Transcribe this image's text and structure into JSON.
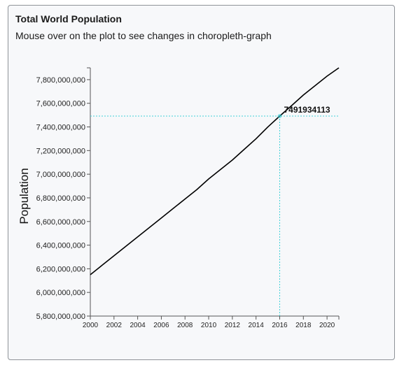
{
  "card": {
    "title": "Total World Population",
    "subtitle": "Mouse over on the plot to see changes in choropleth-graph"
  },
  "chart_data": {
    "type": "line",
    "title": "Total World Population",
    "xlabel": "",
    "ylabel": "Population",
    "x": [
      2000,
      2001,
      2002,
      2003,
      2004,
      2005,
      2006,
      2007,
      2008,
      2009,
      2010,
      2011,
      2012,
      2013,
      2014,
      2015,
      2016,
      2017,
      2018,
      2019,
      2020,
      2021
    ],
    "series": [
      {
        "name": "",
        "values": [
          6150000000,
          6230000000,
          6310000000,
          6390000000,
          6470000000,
          6550000000,
          6630000000,
          6710000000,
          6790000000,
          6870000000,
          6960000000,
          7040000000,
          7120000000,
          7210000000,
          7300000000,
          7400000000,
          7491934113,
          7580000000,
          7670000000,
          7750000000,
          7830000000,
          7900000000
        ]
      }
    ],
    "xlim": [
      2000,
      2021
    ],
    "ylim": [
      5800000000,
      7900000000
    ],
    "y_ticks": [
      5800000000,
      6000000000,
      6200000000,
      6400000000,
      6600000000,
      6800000000,
      7000000000,
      7200000000,
      7400000000,
      7600000000,
      7800000000
    ],
    "y_tick_labels": [
      "5,800,000,000",
      "6,000,000,000",
      "6,200,000,000",
      "6,400,000,000",
      "6,600,000,000",
      "6,800,000,000",
      "7,000,000,000",
      "7,200,000,000",
      "7,400,000,000",
      "7,600,000,000",
      "7,800,000,000"
    ],
    "x_ticks": [
      2000,
      2002,
      2004,
      2006,
      2008,
      2010,
      2012,
      2014,
      2016,
      2018,
      2020
    ],
    "x_tick_labels": [
      "2000",
      "2002",
      "2004",
      "2006",
      "2008",
      "2010",
      "2012",
      "2014",
      "2016",
      "2018",
      "2020"
    ],
    "hover": {
      "x": 2016,
      "y": 7491934113,
      "label": "7491934113"
    },
    "grid": false,
    "colors": {
      "line": "#000000",
      "crosshair": "#40d0d8",
      "axis": "#555555"
    }
  }
}
